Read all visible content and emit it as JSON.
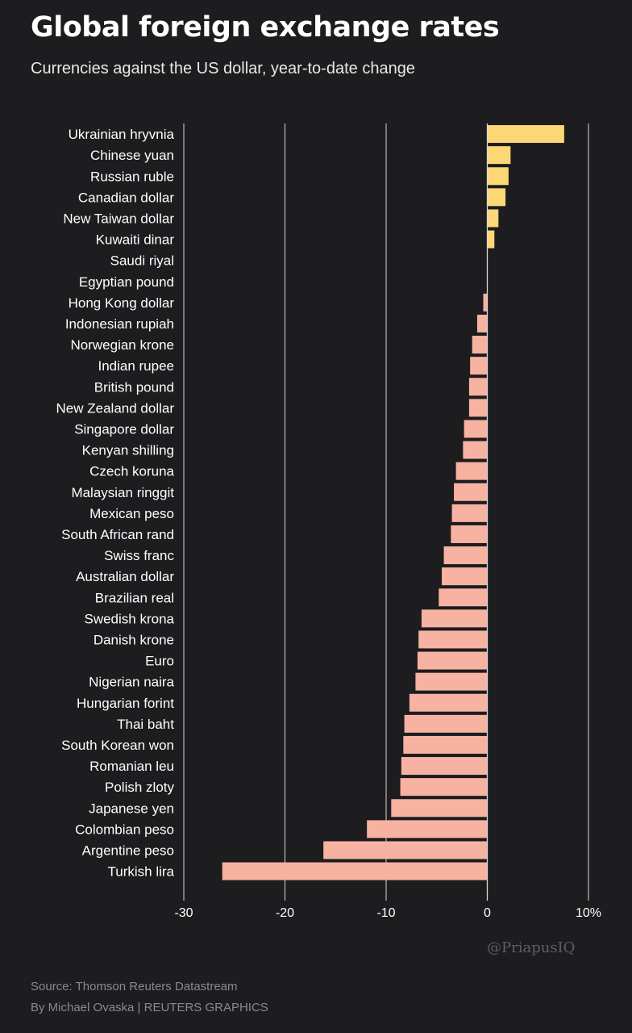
{
  "title": "Global foreign exchange rates",
  "subtitle": "Currencies against the US dollar, year-to-date change",
  "watermark": "@PriapusIQ",
  "source": "Source: Thomson Reuters Datastream",
  "byline": "By Michael Ovaska | REUTERS GRAPHICS",
  "colors": {
    "positive": "#fdd776",
    "negative": "#f7b2a2",
    "gridline": "#d9d9d9",
    "background": "#1d1c1f"
  },
  "chart_data": {
    "type": "bar",
    "orientation": "horizontal",
    "title": "Global foreign exchange rates",
    "subtitle": "Currencies against the US dollar, year-to-date change",
    "xlim": [
      -30,
      10
    ],
    "xticks": [
      -30,
      -20,
      -10,
      0,
      10
    ],
    "xtick_labels": [
      "-30",
      "-20",
      "-10",
      "0",
      "10%"
    ],
    "grid": true,
    "categories": [
      "Ukrainian hryvnia",
      "Chinese yuan",
      "Russian ruble",
      "Canadian dollar",
      "New Taiwan dollar",
      "Kuwaiti dinar",
      "Saudi riyal",
      "Egyptian pound",
      "Hong Kong dollar",
      "Indonesian rupiah",
      "Norwegian krone",
      "Indian rupee",
      "British pound",
      "New Zealand dollar",
      "Singapore dollar",
      "Kenyan shilling",
      "Czech koruna",
      "Malaysian ringgit",
      "Mexican peso",
      "South African rand",
      "Swiss franc",
      "Australian dollar",
      "Brazilian real",
      "Swedish krona",
      "Danish krone",
      "Euro",
      "Nigerian naira",
      "Hungarian forint",
      "Thai baht",
      "South Korean won",
      "Romanian leu",
      "Polish zloty",
      "Japanese yen",
      "Colombian peso",
      "Argentine peso",
      "Turkish lira"
    ],
    "values": [
      7.6,
      2.3,
      2.1,
      1.8,
      1.1,
      0.7,
      0.0,
      0.0,
      -0.4,
      -1.0,
      -1.5,
      -1.7,
      -1.8,
      -1.8,
      -2.3,
      -2.4,
      -3.1,
      -3.3,
      -3.5,
      -3.6,
      -4.3,
      -4.5,
      -4.8,
      -6.5,
      -6.8,
      -6.9,
      -7.1,
      -7.7,
      -8.2,
      -8.3,
      -8.5,
      -8.6,
      -9.5,
      -11.9,
      -16.2,
      -26.2
    ]
  }
}
